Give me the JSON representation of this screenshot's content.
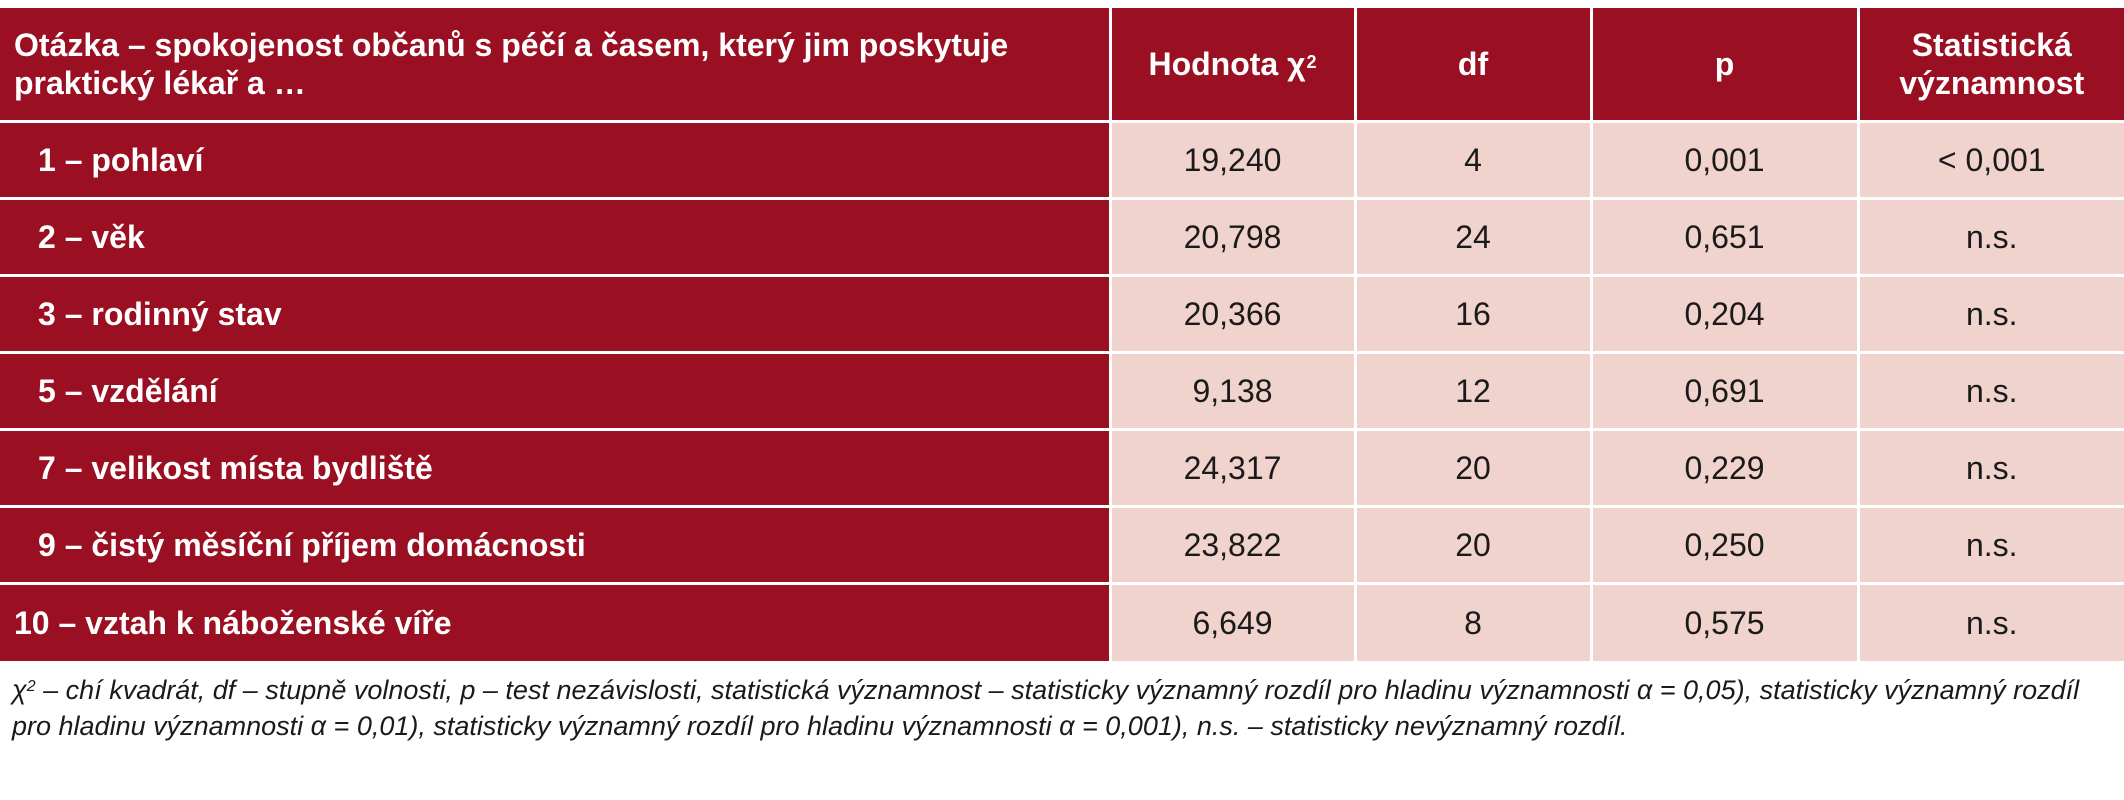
{
  "header": {
    "question": "Otázka – spokojenost občanů s péčí a časem, který jim poskytuje praktický lékař a …",
    "chi_label": "Hodnota χ",
    "chi_sup": "2",
    "df": "df",
    "p": "p",
    "significance": "Statistická významnost"
  },
  "rows": [
    {
      "label": "1 – pohlaví",
      "chi": "19,240",
      "df": "4",
      "p": "0,001",
      "sig": "< 0,001"
    },
    {
      "label": "2 – věk",
      "chi": "20,798",
      "df": "24",
      "p": "0,651",
      "sig": "n.s."
    },
    {
      "label": "3 – rodinný stav",
      "chi": "20,366",
      "df": "16",
      "p": "0,204",
      "sig": "n.s."
    },
    {
      "label": "5 – vzdělání",
      "chi": "9,138",
      "df": "12",
      "p": "0,691",
      "sig": "n.s."
    },
    {
      "label": "7 – velikost místa bydliště",
      "chi": "24,317",
      "df": "20",
      "p": "0,229",
      "sig": "n.s."
    },
    {
      "label": "9 – čistý měsíční příjem domácnosti",
      "chi": "23,822",
      "df": "20",
      "p": "0,250",
      "sig": "n.s."
    },
    {
      "label": "10 – vztah k náboženské víře",
      "chi": "6,649",
      "df": "8",
      "p": "0,575",
      "sig": "n.s."
    }
  ],
  "footnote": {
    "chi_symbol": "χ",
    "chi_sup": "2",
    "text": " – chí kvadrát, df – stupně volnosti, p – test nezávislosti, statistická významnost – statisticky významný rozdíl pro hladinu významnosti α = 0,05), statisticky významný rozdíl pro hladinu významnosti α = 0,01), statisticky významný rozdíl pro hladinu významnosti α = 0,001), n.s. – statisticky nevýznamný rozdíl."
  },
  "colors": {
    "header_bg": "#9a0f22",
    "cell_bg": "#f0d3cd",
    "header_text": "#ffffff"
  }
}
